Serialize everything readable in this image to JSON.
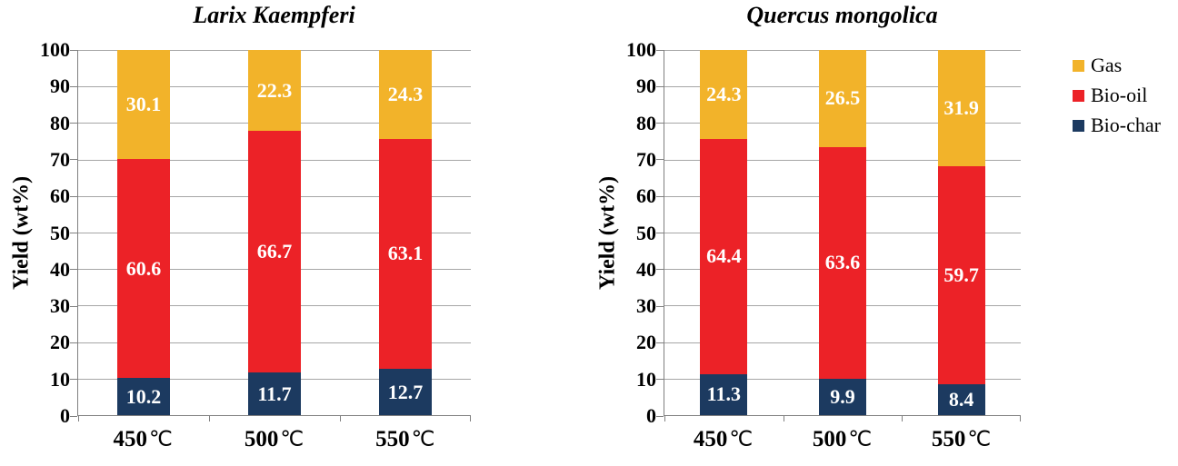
{
  "figure": {
    "background": "#FFFFFF"
  },
  "colors": {
    "gas": "#F2B32A",
    "bio_oil": "#EC2227",
    "bio_char": "#1C3A60",
    "grid_line": "#A6A6A6",
    "axis_line": "#808080",
    "bar_value_text": "#FFFFFF",
    "text": "#000000"
  },
  "axis": {
    "ylabel": "Yield (wt%)",
    "ylim": [
      0,
      100
    ],
    "ytick_step": 10,
    "yticks": [
      0,
      10,
      20,
      30,
      40,
      50,
      60,
      70,
      80,
      90,
      100
    ],
    "grid": "horizontal"
  },
  "legend": {
    "position": "right",
    "items": [
      {
        "label": "Gas",
        "color": "#F2B32A"
      },
      {
        "label": "Bio-oil",
        "color": "#EC2227"
      },
      {
        "label": "Bio-char",
        "color": "#1C3A60"
      }
    ]
  },
  "chart_data": [
    {
      "type": "bar",
      "subtype": "stacked-column",
      "title": "Larix Kaempferi",
      "ylabel": "Yield (wt%)",
      "ylim": [
        0,
        100
      ],
      "categories": [
        "450",
        "500",
        "550"
      ],
      "category_unit": "℃",
      "series": [
        {
          "name": "Bio-char",
          "color": "#1C3A60",
          "values": [
            10.2,
            11.7,
            12.7
          ]
        },
        {
          "name": "Bio-oil",
          "color": "#EC2227",
          "values": [
            60.6,
            66.7,
            63.1
          ]
        },
        {
          "name": "Gas",
          "color": "#F2B32A",
          "values": [
            30.1,
            22.3,
            24.3
          ]
        }
      ]
    },
    {
      "type": "bar",
      "subtype": "stacked-column",
      "title": "Quercus mongolica",
      "ylabel": "Yield (wt%)",
      "ylim": [
        0,
        100
      ],
      "categories": [
        "450",
        "500",
        "550"
      ],
      "category_unit": "℃",
      "series": [
        {
          "name": "Bio-char",
          "color": "#1C3A60",
          "values": [
            11.3,
            9.9,
            8.4
          ]
        },
        {
          "name": "Bio-oil",
          "color": "#EC2227",
          "values": [
            64.4,
            63.6,
            59.7
          ]
        },
        {
          "name": "Gas",
          "color": "#F2B32A",
          "values": [
            24.3,
            26.5,
            31.9
          ]
        }
      ]
    }
  ]
}
